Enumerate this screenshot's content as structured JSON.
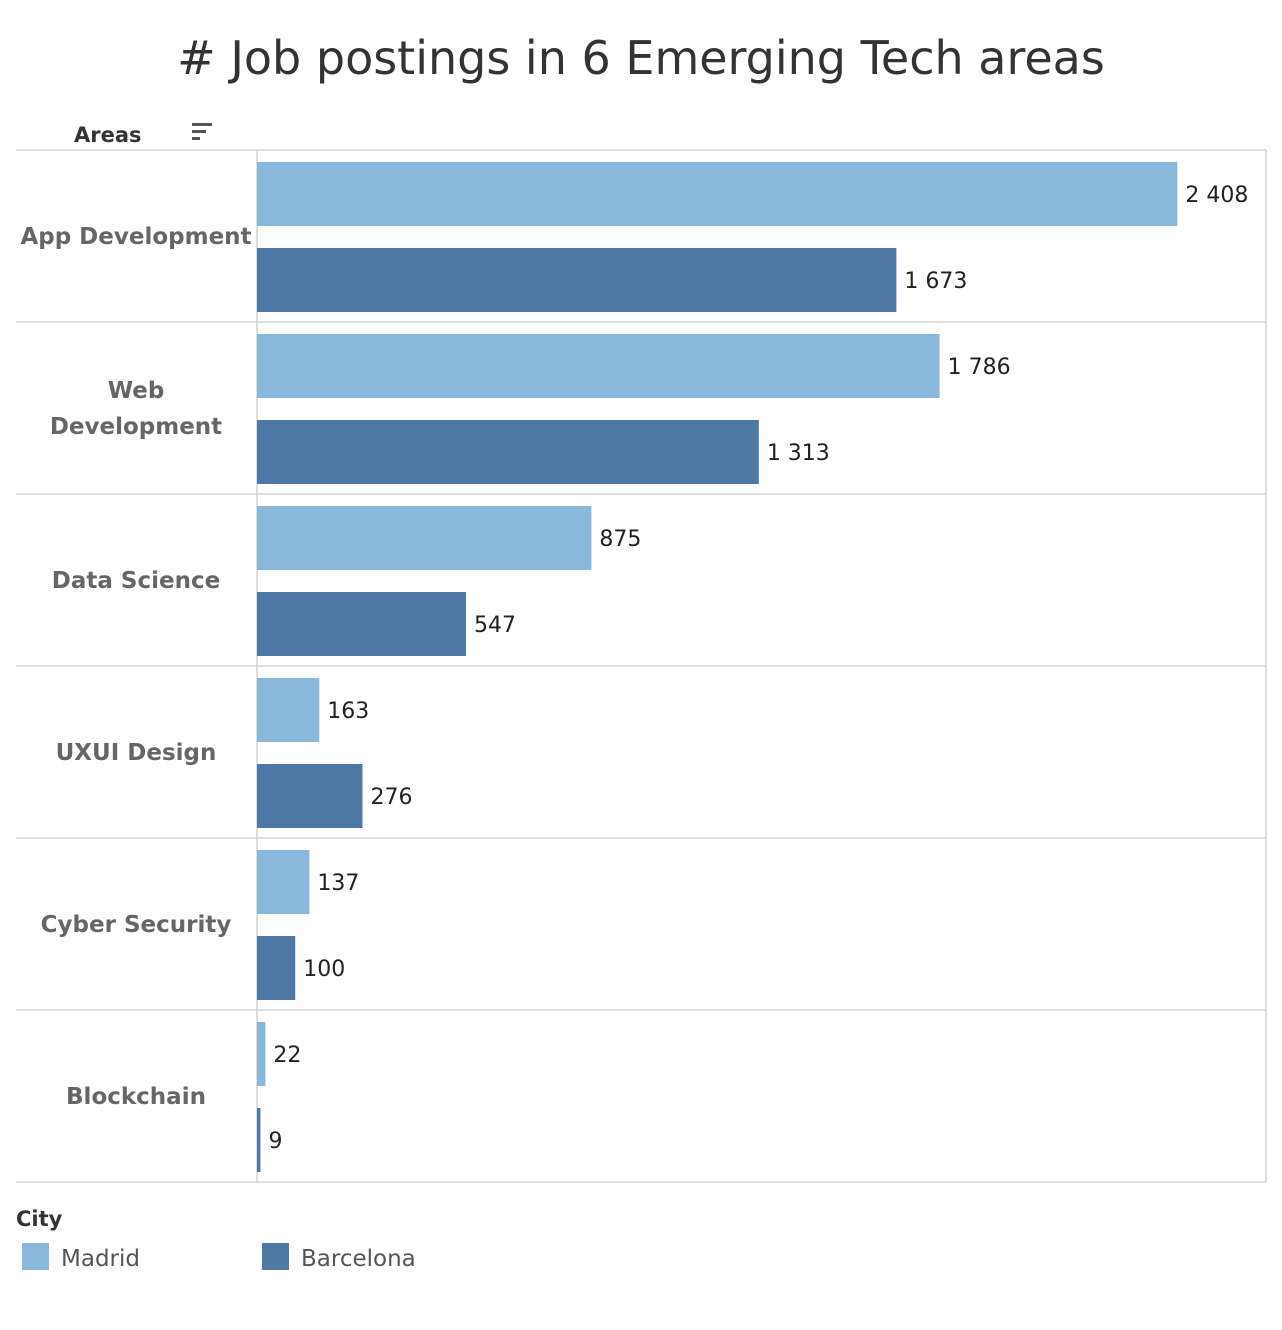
{
  "chart_data": {
    "type": "bar",
    "orientation": "horizontal",
    "title": "# Job postings in 6 Emerging Tech areas",
    "row_header": "Areas",
    "categories": [
      [
        "App Development"
      ],
      [
        "Web",
        "Development"
      ],
      [
        "Data Science"
      ],
      [
        "UXUI Design"
      ],
      [
        "Cyber Security"
      ],
      [
        "Blockchain"
      ]
    ],
    "series": [
      {
        "name": "Madrid",
        "color": "#8ab8da",
        "values": [
          2408,
          1786,
          875,
          163,
          137,
          22
        ],
        "labels": [
          "2 408",
          "1 786",
          "875",
          "163",
          "137",
          "22"
        ]
      },
      {
        "name": "Barcelona",
        "color": "#4e79a5",
        "values": [
          1673,
          1313,
          547,
          276,
          100,
          9
        ],
        "labels": [
          "1 673",
          "1 313",
          "547",
          "276",
          "100",
          "9"
        ]
      }
    ],
    "xlim": [
      0,
      2640
    ],
    "legend_title": "City",
    "legend_position": "bottom-left"
  }
}
